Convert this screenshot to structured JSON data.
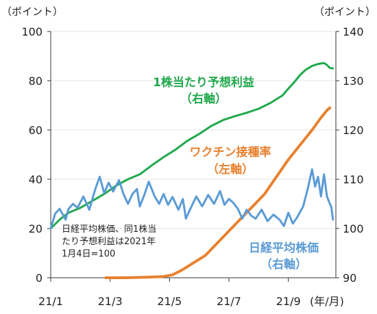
{
  "chart_data": {
    "type": "line",
    "left_axis": {
      "unit": "（ポイント）",
      "ylim": [
        0,
        100
      ],
      "ticks": [
        "0",
        "20",
        "40",
        "60",
        "80",
        "100"
      ]
    },
    "right_axis": {
      "unit": "（ポイント）",
      "ylim": [
        90,
        140
      ],
      "ticks": [
        "90",
        "100",
        "110",
        "120",
        "130",
        "140"
      ]
    },
    "x_axis": {
      "unit": "(年/月)",
      "ticks": [
        "21/1",
        "21/3",
        "21/5",
        "21/7",
        "21/9"
      ],
      "tick_months": [
        0,
        2,
        4,
        6,
        8
      ],
      "xlim_months": [
        0,
        9.6
      ]
    },
    "series": [
      {
        "name_line1": "1株当たり予想利益",
        "name_line2": "（右軸）",
        "axis": "right",
        "color": "#1fa84b",
        "points": [
          [
            0.0,
            100.0
          ],
          [
            0.3,
            101.8
          ],
          [
            0.6,
            103.2
          ],
          [
            1.0,
            104.2
          ],
          [
            1.4,
            105.6
          ],
          [
            1.8,
            107.0
          ],
          [
            2.2,
            108.7
          ],
          [
            2.6,
            110.0
          ],
          [
            3.0,
            111.0
          ],
          [
            3.4,
            112.8
          ],
          [
            3.8,
            114.5
          ],
          [
            4.2,
            116.0
          ],
          [
            4.6,
            117.8
          ],
          [
            5.0,
            119.2
          ],
          [
            5.4,
            120.8
          ],
          [
            5.8,
            122.0
          ],
          [
            6.2,
            122.8
          ],
          [
            6.6,
            123.5
          ],
          [
            7.0,
            124.3
          ],
          [
            7.4,
            125.5
          ],
          [
            7.8,
            127.0
          ],
          [
            8.0,
            128.4
          ],
          [
            8.2,
            129.7
          ],
          [
            8.4,
            131.2
          ],
          [
            8.6,
            132.3
          ],
          [
            8.8,
            133.0
          ],
          [
            9.0,
            133.4
          ],
          [
            9.2,
            133.6
          ],
          [
            9.3,
            133.2
          ],
          [
            9.4,
            132.6
          ],
          [
            9.5,
            132.5
          ]
        ]
      },
      {
        "name_line1": "ワクチン接種率",
        "name_line2": "（左軸）",
        "axis": "left",
        "color": "#e8812f",
        "points": [
          [
            1.85,
            0
          ],
          [
            2.5,
            0
          ],
          [
            3.2,
            0.2
          ],
          [
            3.8,
            0.5
          ],
          [
            4.1,
            1.2
          ],
          [
            4.4,
            3
          ],
          [
            4.8,
            6
          ],
          [
            5.2,
            9
          ],
          [
            5.6,
            14
          ],
          [
            6.0,
            19
          ],
          [
            6.4,
            24
          ],
          [
            6.8,
            29
          ],
          [
            7.2,
            34
          ],
          [
            7.6,
            41
          ],
          [
            8.0,
            48
          ],
          [
            8.4,
            54
          ],
          [
            8.8,
            60
          ],
          [
            9.1,
            65
          ],
          [
            9.3,
            68
          ],
          [
            9.4,
            69
          ]
        ]
      },
      {
        "name_line1": "日経平均株価",
        "name_line2": "（右軸）",
        "axis": "right",
        "color": "#5b9bd5",
        "points": [
          [
            0.0,
            100.0
          ],
          [
            0.15,
            103.0
          ],
          [
            0.3,
            104.0
          ],
          [
            0.5,
            101.8
          ],
          [
            0.6,
            104.0
          ],
          [
            0.75,
            105.0
          ],
          [
            0.9,
            104.2
          ],
          [
            1.1,
            106.5
          ],
          [
            1.3,
            103.8
          ],
          [
            1.5,
            108.0
          ],
          [
            1.65,
            110.5
          ],
          [
            1.8,
            107.2
          ],
          [
            1.95,
            109.3
          ],
          [
            2.1,
            107.5
          ],
          [
            2.3,
            109.8
          ],
          [
            2.45,
            107.0
          ],
          [
            2.6,
            105.0
          ],
          [
            2.75,
            107.0
          ],
          [
            2.9,
            108.0
          ],
          [
            3.0,
            104.5
          ],
          [
            3.15,
            106.8
          ],
          [
            3.3,
            109.5
          ],
          [
            3.5,
            106.5
          ],
          [
            3.65,
            105.0
          ],
          [
            3.8,
            107.0
          ],
          [
            3.95,
            104.8
          ],
          [
            4.1,
            106.4
          ],
          [
            4.3,
            103.8
          ],
          [
            4.45,
            106.0
          ],
          [
            4.55,
            102.0
          ],
          [
            4.7,
            104.0
          ],
          [
            4.9,
            106.5
          ],
          [
            5.1,
            104.5
          ],
          [
            5.3,
            106.8
          ],
          [
            5.5,
            105.0
          ],
          [
            5.7,
            107.6
          ],
          [
            5.85,
            104.8
          ],
          [
            6.0,
            106.0
          ],
          [
            6.15,
            105.2
          ],
          [
            6.3,
            104.0
          ],
          [
            6.45,
            102.0
          ],
          [
            6.6,
            103.8
          ],
          [
            6.75,
            102.6
          ],
          [
            6.9,
            102.0
          ],
          [
            7.1,
            103.8
          ],
          [
            7.3,
            101.5
          ],
          [
            7.5,
            102.8
          ],
          [
            7.7,
            101.8
          ],
          [
            7.85,
            100.5
          ],
          [
            8.0,
            103.2
          ],
          [
            8.15,
            101.0
          ],
          [
            8.3,
            102.3
          ],
          [
            8.5,
            104.5
          ],
          [
            8.65,
            108.0
          ],
          [
            8.8,
            112.0
          ],
          [
            8.9,
            108.5
          ],
          [
            9.0,
            110.5
          ],
          [
            9.1,
            106.5
          ],
          [
            9.2,
            111.0
          ],
          [
            9.3,
            106.5
          ],
          [
            9.4,
            105.0
          ],
          [
            9.45,
            104.3
          ],
          [
            9.5,
            101.8
          ]
        ]
      }
    ],
    "note_lines": [
      "日経平均株価、同1株当",
      "たり予想利益は2021年",
      "1月4日=100"
    ]
  }
}
